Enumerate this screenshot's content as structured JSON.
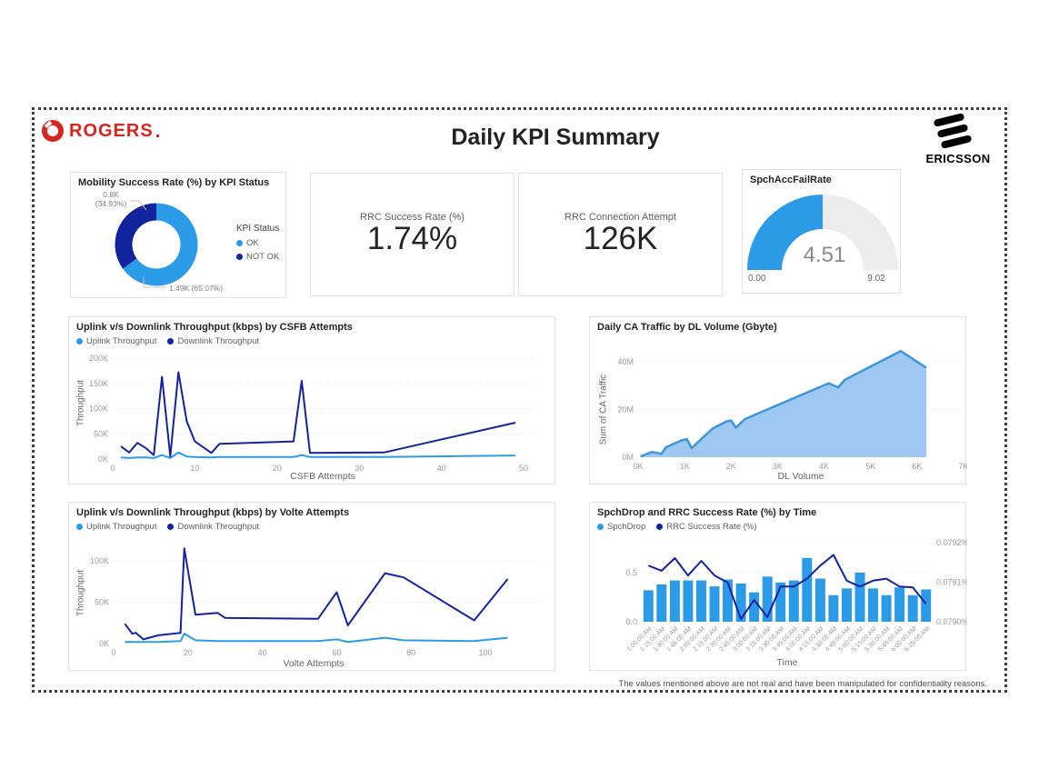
{
  "page": {
    "brand_left": "ROGERS",
    "title": "Daily KPI Summary",
    "brand_right": "ERICSSON",
    "footer_note": "The values mentioned above are not real and have been manipulated for confidentiality reasons."
  },
  "colors": {
    "light_blue": "#2B9BE8",
    "navy": "#12239E",
    "area_fill": "#9EC8F2",
    "area_stroke": "#3D95DD",
    "gauge_track": "#ECECEC",
    "brand_red": "#D6251F"
  },
  "kpi_cards": [
    {
      "label": "RRC Success Rate (%)",
      "value": "1.74%"
    },
    {
      "label": "RRC Connection Attempt",
      "value": "126K"
    }
  ],
  "chart_data": [
    {
      "id": "mobility",
      "type": "pie",
      "title": "Mobility Success Rate (%) by KPI Status",
      "legend_title": "KPI Status",
      "slices": [
        {
          "label": "OK",
          "color": "#2B9BE8",
          "pct": 65.07,
          "display": "1.49K (65.07%)"
        },
        {
          "label": "NOT OK",
          "color": "#12239E",
          "pct": 34.93,
          "display_lines": [
            "0.8K",
            "(34.93%)"
          ]
        }
      ]
    },
    {
      "id": "gauge",
      "type": "gauge",
      "title": "SpchAccFailRate",
      "value": 4.51,
      "min": 0,
      "max": 9.02,
      "value_label": "4.51",
      "min_label": "0.00",
      "max_label": "9.02",
      "fill_color": "#2B9BE8",
      "track_color": "#ECECEC"
    },
    {
      "id": "csfb",
      "type": "line",
      "title": "Uplink v/s Downlink Throughput (kbps) by CSFB Attempts",
      "xlabel": "CSFB Attempts",
      "ylabel": "Throughput",
      "unit": "K kbps",
      "xlim": [
        0,
        50
      ],
      "ylim": [
        0,
        200
      ],
      "x": [
        1,
        2,
        3,
        4,
        5,
        6,
        7,
        8,
        9,
        10,
        12,
        13,
        22,
        23,
        24,
        33,
        49
      ],
      "series": [
        {
          "name": "Uplink Throughput",
          "color": "#2B9BE8",
          "values": [
            3,
            2,
            3,
            3,
            2,
            8,
            2,
            13,
            5,
            4,
            3,
            4,
            4,
            8,
            4,
            4,
            7
          ]
        },
        {
          "name": "Downlink Throughput",
          "color": "#12239E",
          "values": [
            25,
            13,
            32,
            22,
            8,
            163,
            5,
            172,
            75,
            35,
            12,
            30,
            35,
            155,
            12,
            13,
            72
          ]
        }
      ],
      "yticks": [
        {
          "v": 0,
          "label": "0K"
        },
        {
          "v": 50,
          "label": "50K"
        },
        {
          "v": 100,
          "label": "100K"
        },
        {
          "v": 150,
          "label": "150K"
        },
        {
          "v": 200,
          "label": "200K"
        }
      ],
      "xticks": [
        {
          "v": 0,
          "label": "0"
        },
        {
          "v": 10,
          "label": "10"
        },
        {
          "v": 20,
          "label": "20"
        },
        {
          "v": 30,
          "label": "30"
        },
        {
          "v": 40,
          "label": "40"
        },
        {
          "v": 50,
          "label": "50"
        }
      ]
    },
    {
      "id": "ca",
      "type": "area",
      "title": "Daily CA Traffic by DL Volume (Gbyte)",
      "xlabel": "DL Volume",
      "ylabel": "Sum of CA Traffic",
      "unit": "M",
      "xlim": [
        0,
        7
      ],
      "ylim": [
        0,
        44.5
      ],
      "x": [
        0.05,
        0.3,
        0.5,
        0.6,
        0.95,
        1.05,
        1.15,
        1.6,
        1.9,
        2.0,
        2.1,
        2.3,
        4.1,
        4.3,
        4.45,
        5.65,
        6.2
      ],
      "series": [
        {
          "name": "Sum of CA Traffic",
          "color": "#3D95DD",
          "fill": "#9EC8F2",
          "values": [
            0.3,
            2.2,
            1.4,
            4.2,
            7.2,
            7.6,
            3.8,
            12,
            15,
            15.4,
            12.4,
            16,
            31,
            29.3,
            32.5,
            44.5,
            37.5
          ]
        }
      ],
      "yticks": [
        {
          "v": 0,
          "label": "0M"
        },
        {
          "v": 20,
          "label": "20M"
        },
        {
          "v": 40,
          "label": "40M"
        }
      ],
      "xticks": [
        {
          "v": 0,
          "label": "0K"
        },
        {
          "v": 1,
          "label": "1K"
        },
        {
          "v": 2,
          "label": "2K"
        },
        {
          "v": 3,
          "label": "3K"
        },
        {
          "v": 4,
          "label": "4K"
        },
        {
          "v": 5,
          "label": "5K"
        },
        {
          "v": 6,
          "label": "6K"
        },
        {
          "v": 7,
          "label": "7K"
        }
      ]
    },
    {
      "id": "volte",
      "type": "line",
      "title": "Uplink v/s Downlink Throughput (kbps) by Volte Attempts",
      "xlabel": "Volte Attempts",
      "ylabel": "Throughput",
      "unit": "K kbps",
      "xlim": [
        0,
        106
      ],
      "ylim": [
        0,
        120
      ],
      "x": [
        3,
        5,
        6,
        8,
        12,
        18,
        19,
        22,
        28,
        30,
        55,
        60,
        63,
        73,
        78,
        97,
        106
      ],
      "series": [
        {
          "name": "Uplink Throughput",
          "color": "#2B9BE8",
          "values": [
            2,
            2,
            2,
            2,
            2,
            3,
            12,
            4,
            3,
            3,
            3,
            5,
            2,
            7,
            4,
            3,
            7
          ]
        },
        {
          "name": "Downlink Throughput",
          "color": "#12239E",
          "values": [
            24,
            12,
            13,
            5,
            10,
            13,
            115,
            35,
            37,
            31,
            30,
            62,
            22,
            85,
            80,
            28,
            78
          ]
        }
      ],
      "yticks": [
        {
          "v": 0,
          "label": "0K"
        },
        {
          "v": 50,
          "label": "50K"
        },
        {
          "v": 100,
          "label": "100K"
        }
      ],
      "xticks": [
        {
          "v": 0,
          "label": "0"
        },
        {
          "v": 20,
          "label": "20"
        },
        {
          "v": 40,
          "label": "40"
        },
        {
          "v": 60,
          "label": "60"
        },
        {
          "v": 80,
          "label": "80"
        },
        {
          "v": 100,
          "label": "100"
        }
      ]
    },
    {
      "id": "combo",
      "type": "bar+line",
      "title": "SpchDrop and RRC Success Rate (%) by Time",
      "xlabel": "Time",
      "categories": [
        "1:00:00 AM",
        "1:15:00 AM",
        "1:30:00 AM",
        "1:45:00 AM",
        "2:00:00 AM",
        "2:15:00 AM",
        "2:30:00 AM",
        "2:45:00 AM",
        "3:00:00 AM",
        "3:15:00 AM",
        "3:30:00 AM",
        "3:45:00 AM",
        "4:00:00 AM",
        "4:15:00 AM",
        "4:30:00 AM",
        "4:45:00 AM",
        "5:00:00 AM",
        "5:15:00 AM",
        "5:30:00 AM",
        "5:45:00 AM",
        "6:00:00 AM",
        "6:15:00 AM"
      ],
      "bar_series": {
        "name": "SpchDrop",
        "color": "#2B9BE8",
        "values": [
          0.32,
          0.38,
          0.42,
          0.42,
          0.42,
          0.36,
          0.43,
          0.39,
          0.3,
          0.46,
          0.4,
          0.42,
          0.65,
          0.44,
          0.27,
          0.34,
          0.5,
          0.34,
          0.27,
          0.35,
          0.27,
          0.33
        ]
      },
      "line_series": {
        "name": "RRC Success Rate (%)",
        "color": "#12239E",
        "values": [
          0.079142,
          0.079129,
          0.079161,
          0.079117,
          0.079154,
          0.079117,
          0.079099,
          0.079007,
          0.079055,
          0.079012,
          0.079089,
          0.079089,
          0.079109,
          0.079142,
          0.079169,
          0.079104,
          0.079089,
          0.079104,
          0.079109,
          0.079089,
          0.079087,
          0.079045
        ]
      },
      "left_ylim": [
        0,
        0.7
      ],
      "right_ylim": [
        0.079,
        0.0792
      ],
      "left_yticks": [
        {
          "v": 0,
          "label": "0.0"
        },
        {
          "v": 0.5,
          "label": "0.5"
        }
      ],
      "right_yticks": [
        {
          "v": 0.079,
          "label": "0.0790%"
        },
        {
          "v": 0.0791,
          "label": "0.0791%"
        },
        {
          "v": 0.0792,
          "label": "0.0792%"
        }
      ]
    }
  ]
}
